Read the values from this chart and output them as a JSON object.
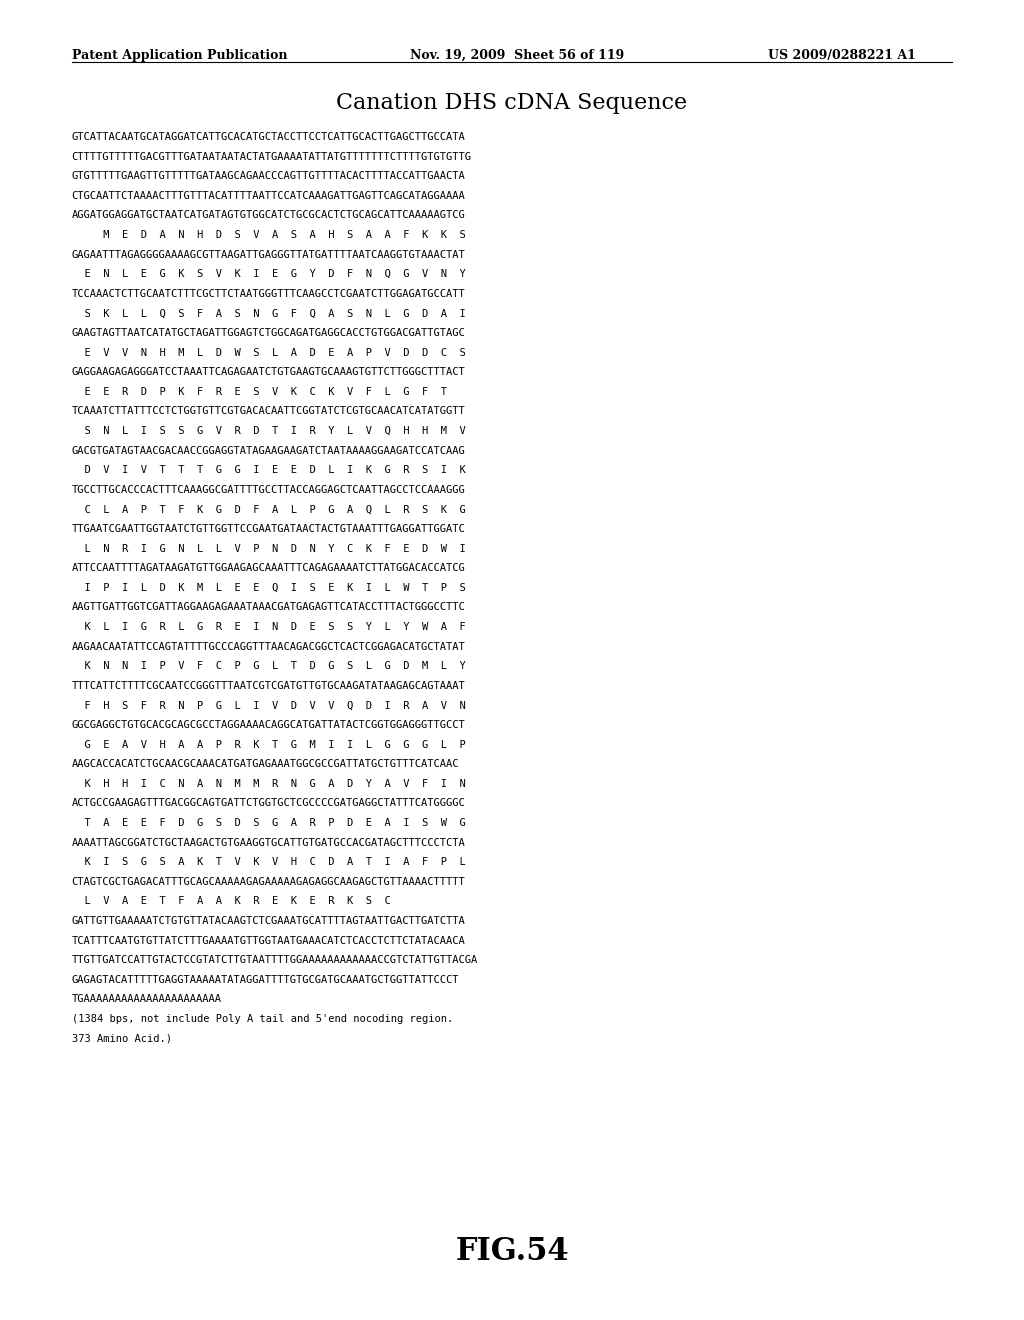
{
  "header_left": "Patent Application Publication",
  "header_mid": "Nov. 19, 2009  Sheet 56 of 119",
  "header_right": "US 2009/0288221 A1",
  "title": "Canation DHS cDNA Sequence",
  "figure_label": "FIG.54",
  "content_lines": [
    "GTCATTACAATGCATAGGATCATTGCACATGCTACCTTCCTCATTGCACTTGAGCTTGCCATA",
    "CTTTTGTTTTTGACGTTTGATAATAATACTATGAAAATATTATGTTTTTTTCTTTTGTGTGTTG",
    "GTGTTTTTGAAGTTGTTTTTGATAAGCAGAACCCAGTTGTTTTACACTTTTACCATTGAACTA",
    "CTGCAATTCTAAAACTTTGTTTACATTTTAATTCCATCAAAGATTGAGTTCAGCATAGGAAAA",
    "AGGATGGAGGATGCTAATCATGATAGTGTGGCATCTGCGCACTCTGCAGCATTCAAAAAGTCG",
    "     M  E  D  A  N  H  D  S  V  A  S  A  H  S  A  A  F  K  K  S",
    "GAGAATTTAGAGGGGAAAAGCGTTAAGATTGAGGGTTATGATTTTAATCAAGGTGTAAACTAT",
    "  E  N  L  E  G  K  S  V  K  I  E  G  Y  D  F  N  Q  G  V  N  Y",
    "TCCAAACTCTTGCAATCTTTCGCTTCTAATGGGTTTCAAGCCTCGAATCTTGGAGATGCCATT",
    "  S  K  L  L  Q  S  F  A  S  N  G  F  Q  A  S  N  L  G  D  A  I",
    "GAAGTAGTTAATCATATGCTAGATTGGAGTCTGGCAGATGAGGCACCTGTGGACGATTGTAGC",
    "  E  V  V  N  H  M  L  D  W  S  L  A  D  E  A  P  V  D  D  C  S",
    "GAGGAAGAGAGGGATCCTAAATTCAGAGAATCTGTGAAGTGCAAAGTGTTCTTGGGCTTTACT",
    "  E  E  R  D  P  K  F  R  E  S  V  K  C  K  V  F  L  G  F  T",
    "TCAAATCTTATTTCCTCTGGTGTTCGTGACACAATTCGGTATCTCGTGCAACATCATATGGTT",
    "  S  N  L  I  S  S  G  V  R  D  T  I  R  Y  L  V  Q  H  H  M  V",
    "GACGTGATAGTAACGACAACCGGAGGTATAGAAGAAGATCTAATAAAAGGAAGATCCATCAAG",
    "  D  V  I  V  T  T  T  G  G  I  E  E  D  L  I  K  G  R  S  I  K",
    "TGCCTTGCACCCACTTTCAAAGGCGATTTTGCCTTACCAGGAGCTCAATTAGCCTCCAAAGGG",
    "  C  L  A  P  T  F  K  G  D  F  A  L  P  G  A  Q  L  R  S  K  G",
    "TTGAATCGAATTGGTAATCTGTTGGTTCCGAATGATAACTACTGTAAATTTGAGGATTGGATC",
    "  L  N  R  I  G  N  L  L  V  P  N  D  N  Y  C  K  F  E  D  W  I",
    "ATTCCAATTTTAGATAAGATGTTGGAAGAGCAAATTTCAGAGAAAATCTTATGGACACCATCG",
    "  I  P  I  L  D  K  M  L  E  E  Q  I  S  E  K  I  L  W  T  P  S",
    "AAGTTGATTGGTCGATTAGGAAGAGAAATAAACGATGAGAGTTCATACCTTTACTGGGCCTTC",
    "  K  L  I  G  R  L  G  R  E  I  N  D  E  S  S  Y  L  Y  W  A  F",
    "AAGAACAATATTCCAGTATTTTGCCCAGGTTTAACAGACGGCTCACTCGGAGACATGCTATAT",
    "  K  N  N  I  P  V  F  C  P  G  L  T  D  G  S  L  G  D  M  L  Y",
    "TTTCATTCTTTTCGCAATCCGGGTTTAATCGTCGATGTTGTGCAAGATATAAGAGCAGTAAAT",
    "  F  H  S  F  R  N  P  G  L  I  V  D  V  V  Q  D  I  R  A  V  N",
    "GGCGAGGCTGTGCACGCAGCGCCTAGGAAAACAGGCATGATTATACTCGGTGGAGGGTTGCCT",
    "  G  E  A  V  H  A  A  P  R  K  T  G  M  I  I  L  G  G  G  L  P",
    "AAGCACCACATCTGCAACGCAAACATGATGAGAAATGGCGCCGATTATGCTGTTTCATCAAC",
    "  K  H  H  I  C  N  A  N  M  M  R  N  G  A  D  Y  A  V  F  I  N",
    "ACTGCCGAAGAGTTTGACGGCAGTGATTCTGGTGCTCGCCCCGATGAGGCTATTTCATGGGGC",
    "  T  A  E  E  F  D  G  S  D  S  G  A  R  P  D  E  A  I  S  W  G",
    "AAAATTAGCGGATCTGCTAAGACTGTGAAGGTGCATTGTGATGCCACGATAGCTTTCCCTCTA",
    "  K  I  S  G  S  A  K  T  V  K  V  H  C  D  A  T  I  A  F  P  L",
    "CTAGTCGCTGAGACATTTGCAGCAAAAAGAGAAAAAGAGAGGCAAGAGCTGTTAAAACTTTTT",
    "  L  V  A  E  T  F  A  A  K  R  E  K  E  R  K  S  C",
    "GATTGTTGAAAAATCTGTGTTATACAAGTCTCGAAATGCATTTTAGTAATTGACTTGATCTTA",
    "TCATTTCAATGTGTTATCTTTGAAAATGTTGGTAATGAAACATCTCACCTCTTCTATACAACA",
    "TTGTTGATCCATTGTACTCCGTATCTTGTAATTTTGGAAAAAAAAAAAACCGTCTATTGTTACGA",
    "GAGAGTACATTTTTGAGGTAAAAATATAGGATTTTGTGCGATGCAAATGCTGGTTATTCCCT",
    "TGAAAAAAAAAAAAAAAAAAAAAA",
    "(1384 bps, not include Poly A tail and 5'end nocoding region.",
    "373 Amino Acid.)"
  ]
}
